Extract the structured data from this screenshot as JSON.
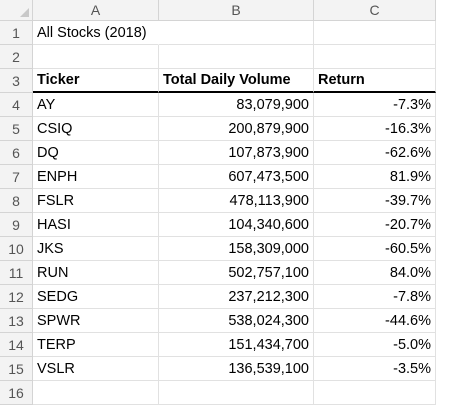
{
  "columns": [
    "A",
    "B",
    "C"
  ],
  "title_cell": "All Stocks (2018)",
  "table_headers": [
    "Ticker",
    "Total Daily Volume",
    "Return"
  ],
  "rows": [
    {
      "ticker": "AY",
      "volume": "83,079,900",
      "return": "-7.3%"
    },
    {
      "ticker": "CSIQ",
      "volume": "200,879,900",
      "return": "-16.3%"
    },
    {
      "ticker": "DQ",
      "volume": "107,873,900",
      "return": "-62.6%"
    },
    {
      "ticker": "ENPH",
      "volume": "607,473,500",
      "return": "81.9%"
    },
    {
      "ticker": "FSLR",
      "volume": "478,113,900",
      "return": "-39.7%"
    },
    {
      "ticker": "HASI",
      "volume": "104,340,600",
      "return": "-20.7%"
    },
    {
      "ticker": "JKS",
      "volume": "158,309,000",
      "return": "-60.5%"
    },
    {
      "ticker": "RUN",
      "volume": "502,757,100",
      "return": "84.0%"
    },
    {
      "ticker": "SEDG",
      "volume": "237,212,300",
      "return": "-7.8%"
    },
    {
      "ticker": "SPWR",
      "volume": "538,024,300",
      "return": "-44.6%"
    },
    {
      "ticker": "TERP",
      "volume": "151,434,700",
      "return": "-5.0%"
    },
    {
      "ticker": "VSLR",
      "volume": "136,539,100",
      "return": "-3.5%"
    }
  ],
  "row_numbers": [
    "1",
    "2",
    "3",
    "4",
    "5",
    "6",
    "7",
    "8",
    "9",
    "10",
    "11",
    "12",
    "13",
    "14",
    "15",
    "16"
  ]
}
